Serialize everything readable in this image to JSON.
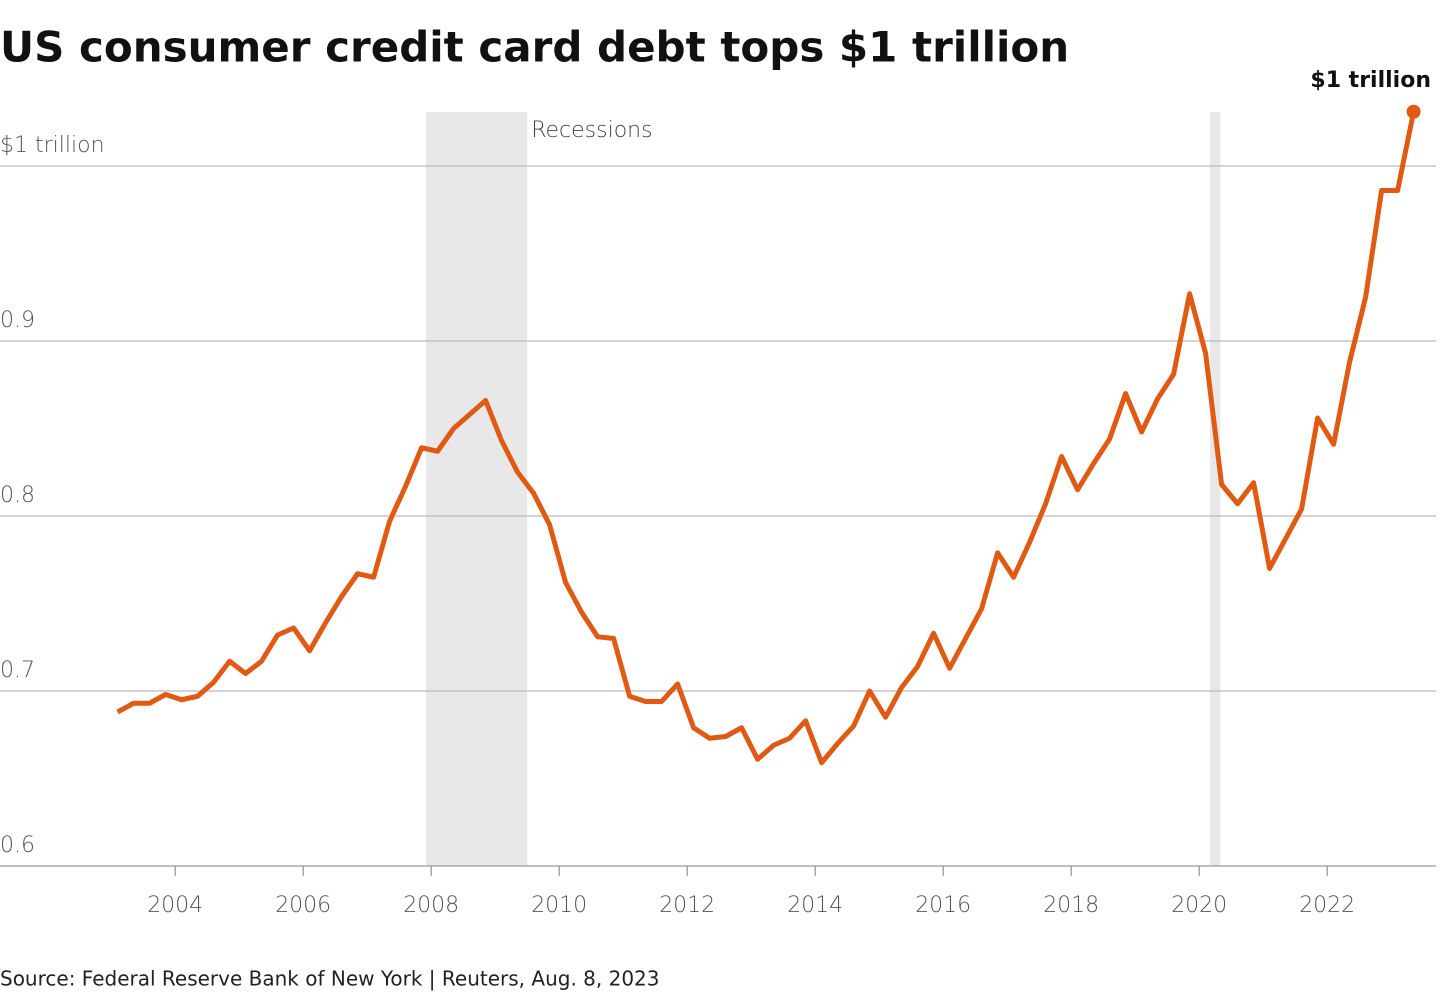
{
  "chart_data": {
    "type": "line",
    "title": "US consumer credit card debt tops $1 trillion",
    "source": "Source: Federal Reserve Bank of New York | Reuters, Aug. 8, 2023",
    "annotation": "$1 trillion",
    "recessions_label": "Recessions",
    "recessions": [
      [
        2007.92,
        2009.5
      ],
      [
        2020.17,
        2020.33
      ]
    ],
    "recession_color": "#e8e8e8",
    "x": [
      2003.1,
      2003.35,
      2003.6,
      2003.85,
      2004.1,
      2004.35,
      2004.6,
      2004.85,
      2005.1,
      2005.35,
      2005.6,
      2005.85,
      2006.1,
      2006.35,
      2006.6,
      2006.85,
      2007.1,
      2007.35,
      2007.6,
      2007.85,
      2008.1,
      2008.35,
      2008.6,
      2008.85,
      2009.1,
      2009.35,
      2009.6,
      2009.85,
      2010.1,
      2010.35,
      2010.6,
      2010.85,
      2011.1,
      2011.35,
      2011.6,
      2011.85,
      2012.1,
      2012.35,
      2012.6,
      2012.85,
      2013.1,
      2013.35,
      2013.6,
      2013.85,
      2014.1,
      2014.35,
      2014.6,
      2014.85,
      2015.1,
      2015.35,
      2015.6,
      2015.85,
      2016.1,
      2016.35,
      2016.6,
      2016.85,
      2017.1,
      2017.35,
      2017.6,
      2017.85,
      2018.1,
      2018.35,
      2018.6,
      2018.85,
      2019.1,
      2019.35,
      2019.6,
      2019.85,
      2020.1,
      2020.35,
      2020.6,
      2020.85,
      2021.1,
      2021.35,
      2021.6,
      2021.85,
      2022.1,
      2022.35,
      2022.6,
      2022.85,
      2023.1,
      2023.35
    ],
    "series": [
      {
        "name": "Credit card debt",
        "color": "#e05a14",
        "values": [
          0.688,
          0.693,
          0.693,
          0.698,
          0.695,
          0.697,
          0.705,
          0.717,
          0.71,
          0.717,
          0.732,
          0.736,
          0.723,
          0.739,
          0.754,
          0.767,
          0.765,
          0.797,
          0.817,
          0.839,
          0.837,
          0.85,
          0.858,
          0.866,
          0.843,
          0.825,
          0.813,
          0.795,
          0.762,
          0.745,
          0.731,
          0.73,
          0.697,
          0.694,
          0.694,
          0.704,
          0.679,
          0.673,
          0.674,
          0.679,
          0.661,
          0.669,
          0.673,
          0.683,
          0.659,
          0.67,
          0.68,
          0.7,
          0.685,
          0.702,
          0.714,
          0.733,
          0.713,
          0.73,
          0.747,
          0.779,
          0.765,
          0.785,
          0.807,
          0.834,
          0.815,
          0.83,
          0.844,
          0.87,
          0.848,
          0.867,
          0.881,
          0.927,
          0.893,
          0.818,
          0.807,
          0.819,
          0.77,
          0.787,
          0.804,
          0.856,
          0.841,
          0.888,
          0.925,
          0.986,
          0.986,
          1.031
        ]
      }
    ],
    "xlim": [
      2001.7,
      2023.7
    ],
    "xticks": [
      2004,
      2006,
      2008,
      2010,
      2012,
      2014,
      2016,
      2018,
      2020,
      2022
    ],
    "ylim": [
      0.6,
      1.05
    ],
    "yticks": [
      0.6,
      0.7,
      0.8,
      0.9,
      {
        "value": 1,
        "label": "$1 trillion"
      }
    ],
    "grid": true
  }
}
